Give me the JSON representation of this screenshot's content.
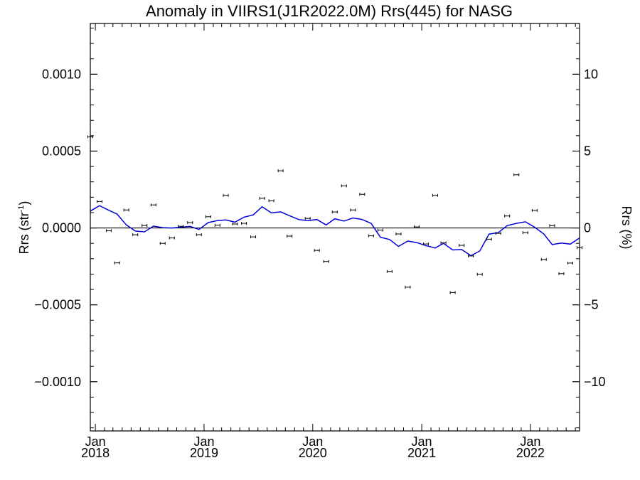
{
  "chart_data": {
    "type": "scatter",
    "title": "Anomaly in VIIRS1(J1R2022.0M) Rrs(445) for NASG",
    "ylabel": {
      "base": "Rrs (str",
      "sup": "-1",
      "end": ")"
    },
    "ylabel_right": "Rrs (%)",
    "ylim": [
      -0.00132,
      0.00133
    ],
    "ylim_right": [
      -13.2,
      13.3
    ],
    "xlim": [
      "2017-12-15",
      "2022-06-15"
    ],
    "y_ticks": [
      {
        "value": 0.001,
        "label": "0.0010"
      },
      {
        "value": 0.0005,
        "label": "0.0005"
      },
      {
        "value": 0.0,
        "label": "0.0000"
      },
      {
        "value": -0.0005,
        "label": "−0.0005"
      },
      {
        "value": -0.001,
        "label": "−0.0010"
      }
    ],
    "y_ticks_right": [
      {
        "value": 10,
        "label": "10"
      },
      {
        "value": 5,
        "label": "5"
      },
      {
        "value": 0,
        "label": "0"
      },
      {
        "value": -5,
        "label": "−5"
      },
      {
        "value": -10,
        "label": "−10"
      }
    ],
    "x_ticks": [
      {
        "date": "2018-01-01",
        "month": "Jan",
        "year": "2018"
      },
      {
        "date": "2019-01-01",
        "month": "Jan",
        "year": "2019"
      },
      {
        "date": "2020-01-01",
        "month": "Jan",
        "year": "2020"
      },
      {
        "date": "2021-01-01",
        "month": "Jan",
        "year": "2021"
      },
      {
        "date": "2022-01-01",
        "month": "Jan",
        "year": "2022"
      }
    ],
    "zero_line": 0,
    "colors": {
      "points": "#000000",
      "smooth_line": "#0000dd",
      "axes": "#000000"
    },
    "points": [
      {
        "x": "2017-12-15",
        "y": 0.000593
      },
      {
        "x": "2018-01-15",
        "y": 0.000172
      },
      {
        "x": "2018-02-15",
        "y": -1.8e-05
      },
      {
        "x": "2018-03-15",
        "y": -0.000227
      },
      {
        "x": "2018-04-15",
        "y": 0.000117
      },
      {
        "x": "2018-05-15",
        "y": -4.4e-05
      },
      {
        "x": "2018-06-15",
        "y": 1.6e-05
      },
      {
        "x": "2018-07-15",
        "y": 0.00015
      },
      {
        "x": "2018-08-15",
        "y": -0.0001
      },
      {
        "x": "2018-09-15",
        "y": -6.5e-05
      },
      {
        "x": "2018-10-15",
        "y": 1.1e-05
      },
      {
        "x": "2018-11-15",
        "y": 3.5e-05
      },
      {
        "x": "2018-12-15",
        "y": -4.4e-05
      },
      {
        "x": "2019-01-15",
        "y": 7.3e-05
      },
      {
        "x": "2019-02-15",
        "y": 1.8e-05
      },
      {
        "x": "2019-03-15",
        "y": 0.000212
      },
      {
        "x": "2019-04-15",
        "y": 2.6e-05
      },
      {
        "x": "2019-05-15",
        "y": 3e-05
      },
      {
        "x": "2019-06-15",
        "y": -5.8e-05
      },
      {
        "x": "2019-07-15",
        "y": 0.000193
      },
      {
        "x": "2019-08-15",
        "y": 0.000177
      },
      {
        "x": "2019-09-15",
        "y": 0.000372
      },
      {
        "x": "2019-10-15",
        "y": -5.3e-05
      },
      {
        "x": "2019-12-15",
        "y": 6.2e-05
      },
      {
        "x": "2020-01-15",
        "y": -0.000146
      },
      {
        "x": "2020-02-15",
        "y": -0.000218
      },
      {
        "x": "2020-03-15",
        "y": 0.000104
      },
      {
        "x": "2020-04-15",
        "y": 0.000274
      },
      {
        "x": "2020-05-15",
        "y": 0.000117
      },
      {
        "x": "2020-06-15",
        "y": 0.000219
      },
      {
        "x": "2020-07-15",
        "y": -5.1e-05
      },
      {
        "x": "2020-08-15",
        "y": -1.4e-05
      },
      {
        "x": "2020-09-15",
        "y": -0.000283
      },
      {
        "x": "2020-10-15",
        "y": -3.9e-05
      },
      {
        "x": "2020-11-15",
        "y": -0.000385
      },
      {
        "x": "2020-12-15",
        "y": 7e-06
      },
      {
        "x": "2021-01-15",
        "y": -0.000104
      },
      {
        "x": "2021-02-15",
        "y": 0.000212
      },
      {
        "x": "2021-03-15",
        "y": -9.7e-05
      },
      {
        "x": "2021-04-15",
        "y": -0.00042
      },
      {
        "x": "2021-05-15",
        "y": -0.000113
      },
      {
        "x": "2021-06-15",
        "y": -0.000182
      },
      {
        "x": "2021-07-15",
        "y": -0.000301
      },
      {
        "x": "2021-08-15",
        "y": -7.3e-05
      },
      {
        "x": "2021-09-15",
        "y": -3.5e-05
      },
      {
        "x": "2021-10-15",
        "y": 7.8e-05
      },
      {
        "x": "2021-11-15",
        "y": 0.000346
      },
      {
        "x": "2021-12-15",
        "y": -3e-05
      },
      {
        "x": "2022-01-15",
        "y": 0.000114
      },
      {
        "x": "2022-02-15",
        "y": -0.000205
      },
      {
        "x": "2022-03-15",
        "y": 1.5e-05
      },
      {
        "x": "2022-04-15",
        "y": -0.000297
      },
      {
        "x": "2022-05-15",
        "y": -0.000228
      },
      {
        "x": "2022-06-15",
        "y": -0.000128
      }
    ],
    "smooth_line": [
      {
        "x": "2017-12-15",
        "y": 0.00011
      },
      {
        "x": "2018-01-15",
        "y": 0.000145
      },
      {
        "x": "2018-02-15",
        "y": 0.000115
      },
      {
        "x": "2018-03-15",
        "y": 9e-05
      },
      {
        "x": "2018-04-15",
        "y": 2e-05
      },
      {
        "x": "2018-05-15",
        "y": -2e-05
      },
      {
        "x": "2018-06-15",
        "y": -2.5e-05
      },
      {
        "x": "2018-07-15",
        "y": 1.2e-05
      },
      {
        "x": "2018-08-15",
        "y": 2e-06
      },
      {
        "x": "2018-09-15",
        "y": 0.0
      },
      {
        "x": "2018-10-15",
        "y": 5e-06
      },
      {
        "x": "2018-11-15",
        "y": 1e-05
      },
      {
        "x": "2018-12-15",
        "y": -1e-05
      },
      {
        "x": "2019-01-15",
        "y": 3.5e-05
      },
      {
        "x": "2019-02-15",
        "y": 4.8e-05
      },
      {
        "x": "2019-03-15",
        "y": 5.2e-05
      },
      {
        "x": "2019-04-15",
        "y": 3.8e-05
      },
      {
        "x": "2019-05-15",
        "y": 7e-05
      },
      {
        "x": "2019-06-15",
        "y": 8.5e-05
      },
      {
        "x": "2019-07-15",
        "y": 0.000138
      },
      {
        "x": "2019-08-15",
        "y": 9.8e-05
      },
      {
        "x": "2019-09-15",
        "y": 0.000105
      },
      {
        "x": "2019-10-15",
        "y": 8e-05
      },
      {
        "x": "2019-11-15",
        "y": 5.5e-05
      },
      {
        "x": "2019-12-15",
        "y": 4.8e-05
      },
      {
        "x": "2020-01-15",
        "y": 5.5e-05
      },
      {
        "x": "2020-02-15",
        "y": 2e-05
      },
      {
        "x": "2020-03-15",
        "y": 6e-05
      },
      {
        "x": "2020-04-15",
        "y": 4.5e-05
      },
      {
        "x": "2020-05-15",
        "y": 6.5e-05
      },
      {
        "x": "2020-06-15",
        "y": 5.5e-05
      },
      {
        "x": "2020-07-15",
        "y": 3e-05
      },
      {
        "x": "2020-08-15",
        "y": -6e-05
      },
      {
        "x": "2020-09-15",
        "y": -7.5e-05
      },
      {
        "x": "2020-10-15",
        "y": -0.00012
      },
      {
        "x": "2020-11-15",
        "y": -8.5e-05
      },
      {
        "x": "2020-12-15",
        "y": -9.5e-05
      },
      {
        "x": "2021-01-15",
        "y": -0.000115
      },
      {
        "x": "2021-02-15",
        "y": -0.00013
      },
      {
        "x": "2021-03-15",
        "y": -0.0001
      },
      {
        "x": "2021-04-15",
        "y": -0.000143
      },
      {
        "x": "2021-05-15",
        "y": -0.00014
      },
      {
        "x": "2021-06-15",
        "y": -0.00018
      },
      {
        "x": "2021-07-15",
        "y": -0.00015
      },
      {
        "x": "2021-08-15",
        "y": -4e-05
      },
      {
        "x": "2021-09-15",
        "y": -3e-05
      },
      {
        "x": "2021-10-15",
        "y": 1.5e-05
      },
      {
        "x": "2021-11-15",
        "y": 3e-05
      },
      {
        "x": "2021-12-15",
        "y": 4e-05
      },
      {
        "x": "2022-01-15",
        "y": 5e-06
      },
      {
        "x": "2022-02-15",
        "y": -4e-05
      },
      {
        "x": "2022-03-15",
        "y": -0.000108
      },
      {
        "x": "2022-04-15",
        "y": -9.8e-05
      },
      {
        "x": "2022-05-15",
        "y": -0.000105
      },
      {
        "x": "2022-06-15",
        "y": -6.5e-05
      }
    ]
  }
}
